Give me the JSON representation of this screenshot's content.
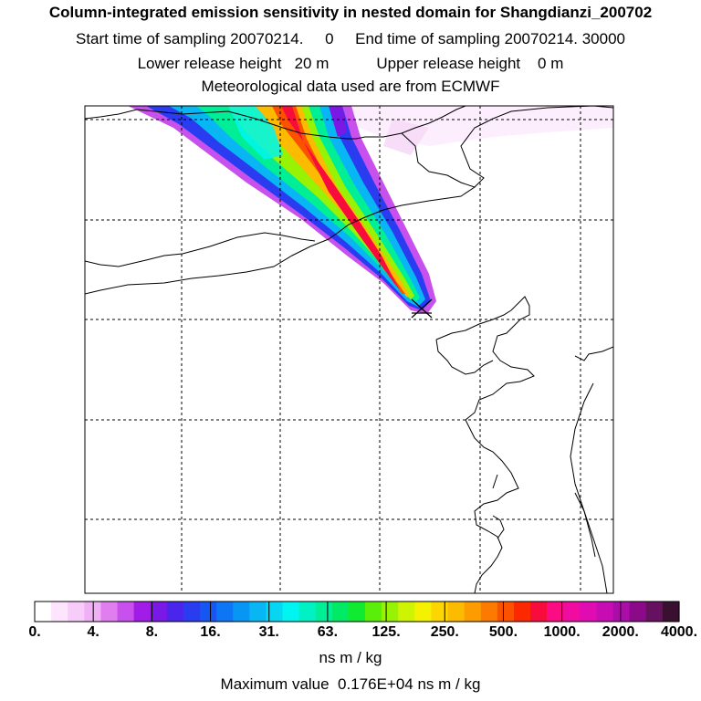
{
  "header": {
    "title": "Column-integrated emission sensitivity in nested domain for Shangdianzi_200702",
    "sampling": "Start time of sampling 20070214.     0     End time of sampling 20070214. 30000",
    "release": "Lower release height   20 m           Upper release height    0 m",
    "met": "Meteorological data used are from ECMWF"
  },
  "chart_data": {
    "type": "heatmap",
    "title": "Column-integrated emission sensitivity in nested domain for Shangdianzi_200702",
    "variable": "emission sensitivity",
    "units": "ns m / kg",
    "max_value_text": "Maximum value  0.176E+04 ns m / kg",
    "max_value": 1760,
    "release_site": "Shangdianzi",
    "grid": true,
    "plume": {
      "direction_from_release": "northwest",
      "description": "narrow plume extending from release site to the north-west edge of the domain"
    },
    "colorbar": {
      "tick_labels": [
        "0.",
        "4.",
        "8.",
        "16.",
        "31.",
        "63.",
        "125.",
        "250.",
        "500.",
        "1000.",
        "2000.",
        "4000."
      ],
      "tick_values": [
        0,
        4,
        8,
        16,
        31,
        63,
        125,
        250,
        500,
        1000,
        2000,
        4000
      ],
      "colors": [
        "#ffffff",
        "#fde6fd",
        "#f8ccf8",
        "#f0b0f4",
        "#e07ef0",
        "#c850ec",
        "#a21ce8",
        "#7a18e6",
        "#4a26ec",
        "#2a3cf0",
        "#1656f2",
        "#0c76f4",
        "#0896f4",
        "#08b6f4",
        "#06d6f2",
        "#00f4f0",
        "#00f2c4",
        "#00ee96",
        "#00ea66",
        "#10ea30",
        "#5aee08",
        "#98f204",
        "#cef404",
        "#f4f200",
        "#fcd600",
        "#fcba00",
        "#fc9c00",
        "#fc7a00",
        "#fc5200",
        "#fc2800",
        "#f80c3c",
        "#fc0c82",
        "#f00ca0",
        "#e00cb2",
        "#c80cb4",
        "#ac0ca8",
        "#8a0a8a",
        "#661060",
        "#3a1030"
      ]
    }
  }
}
